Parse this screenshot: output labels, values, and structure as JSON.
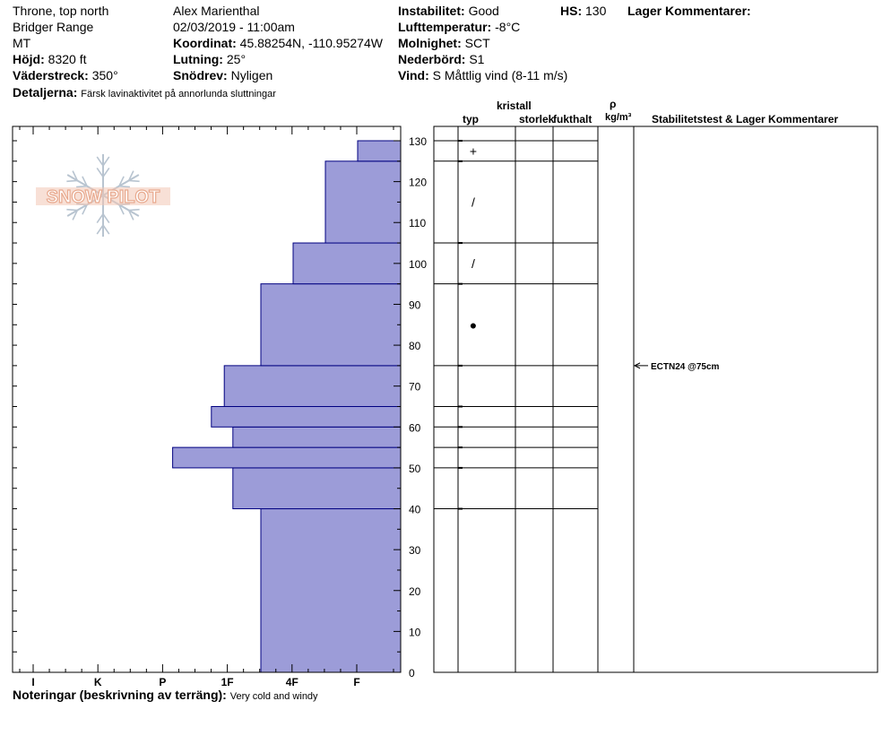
{
  "header": {
    "location": "Throne, top north",
    "range": "Bridger Range",
    "state": "MT",
    "elevation_label": "Höjd:",
    "elevation_value": "8320 ft",
    "aspect_label": "Väderstreck:",
    "aspect_value": "350°",
    "details_label": "Detaljerna:",
    "details_value": "Färsk lavinaktivitet på annorlunda sluttningar",
    "observer": "Alex Marienthal",
    "datetime": "02/03/2019 - 11:00am",
    "coord_label": "Koordinat:",
    "coord_value": "45.88254N, -110.95274W",
    "slope_label": "Lutning:",
    "slope_value": "25°",
    "wind_loading_label": "Snödrev:",
    "wind_loading_value": "Nyligen",
    "stability_label": "Instabilitet:",
    "stability_value": "Good",
    "air_temp_label": "Lufttemperatur:",
    "air_temp_value": "-8°C",
    "sky_label": "Molnighet:",
    "sky_value": "SCT",
    "precip_label": "Nederbörd:",
    "precip_value": "S1",
    "wind_label": "Vind:",
    "wind_value": "S Måttlig vind (8-11 m/s)",
    "hs_label": "HS:",
    "hs_value": "130",
    "layer_comments_label": "Lager Kommentarer:"
  },
  "columns": {
    "crystal_label": "kristall",
    "type_label": "typ",
    "size_label": "storlek",
    "moisture_label": "fukthalt",
    "rho_label": "ρ",
    "density_unit_label": "kg/m³",
    "stability_label": "Stabilitetstest & Lager Kommentarer"
  },
  "footer": {
    "notes_label": "Noteringar (beskrivning av terräng):",
    "notes_value": "Very cold and windy"
  },
  "logo": {
    "text": "SNOW PILOT",
    "color": "#e8a98e"
  },
  "colors": {
    "bar_fill": "#9c9cd8",
    "bar_stroke": "#000080",
    "line": "#000000"
  },
  "chart_data": {
    "type": "bar",
    "orientation": "horizontal",
    "x_categories": [
      "I",
      "K",
      "P",
      "1F",
      "4F",
      "F"
    ],
    "y_range": [
      0,
      130
    ],
    "y_ticks": [
      0,
      10,
      20,
      30,
      40,
      50,
      60,
      70,
      80,
      90,
      100,
      110,
      120,
      130
    ],
    "hardness_layers": [
      {
        "bottom": 0,
        "top": 40,
        "hardness": 3.25
      },
      {
        "bottom": 40,
        "top": 50,
        "hardness": 3.9
      },
      {
        "bottom": 50,
        "top": 55,
        "hardness": 5.3
      },
      {
        "bottom": 55,
        "top": 60,
        "hardness": 3.9
      },
      {
        "bottom": 60,
        "top": 65,
        "hardness": 4.4
      },
      {
        "bottom": 65,
        "top": 75,
        "hardness": 4.1
      },
      {
        "bottom": 75,
        "top": 95,
        "hardness": 3.25
      },
      {
        "bottom": 95,
        "top": 105,
        "hardness": 2.5
      },
      {
        "bottom": 105,
        "top": 125,
        "hardness": 1.75
      },
      {
        "bottom": 125,
        "top": 130,
        "hardness": 1.0
      }
    ],
    "layer_boundaries": [
      40,
      50,
      55,
      60,
      65,
      75,
      95,
      105,
      125,
      130
    ],
    "grain_symbols": [
      {
        "depth": 127.5,
        "symbol": "+"
      },
      {
        "depth": 115,
        "symbol": "/"
      },
      {
        "depth": 100,
        "symbol": "/"
      },
      {
        "depth": 85,
        "symbol": "●"
      }
    ],
    "stability_tests": [
      {
        "depth": 75,
        "label": "ECTN24 @75cm"
      }
    ]
  }
}
